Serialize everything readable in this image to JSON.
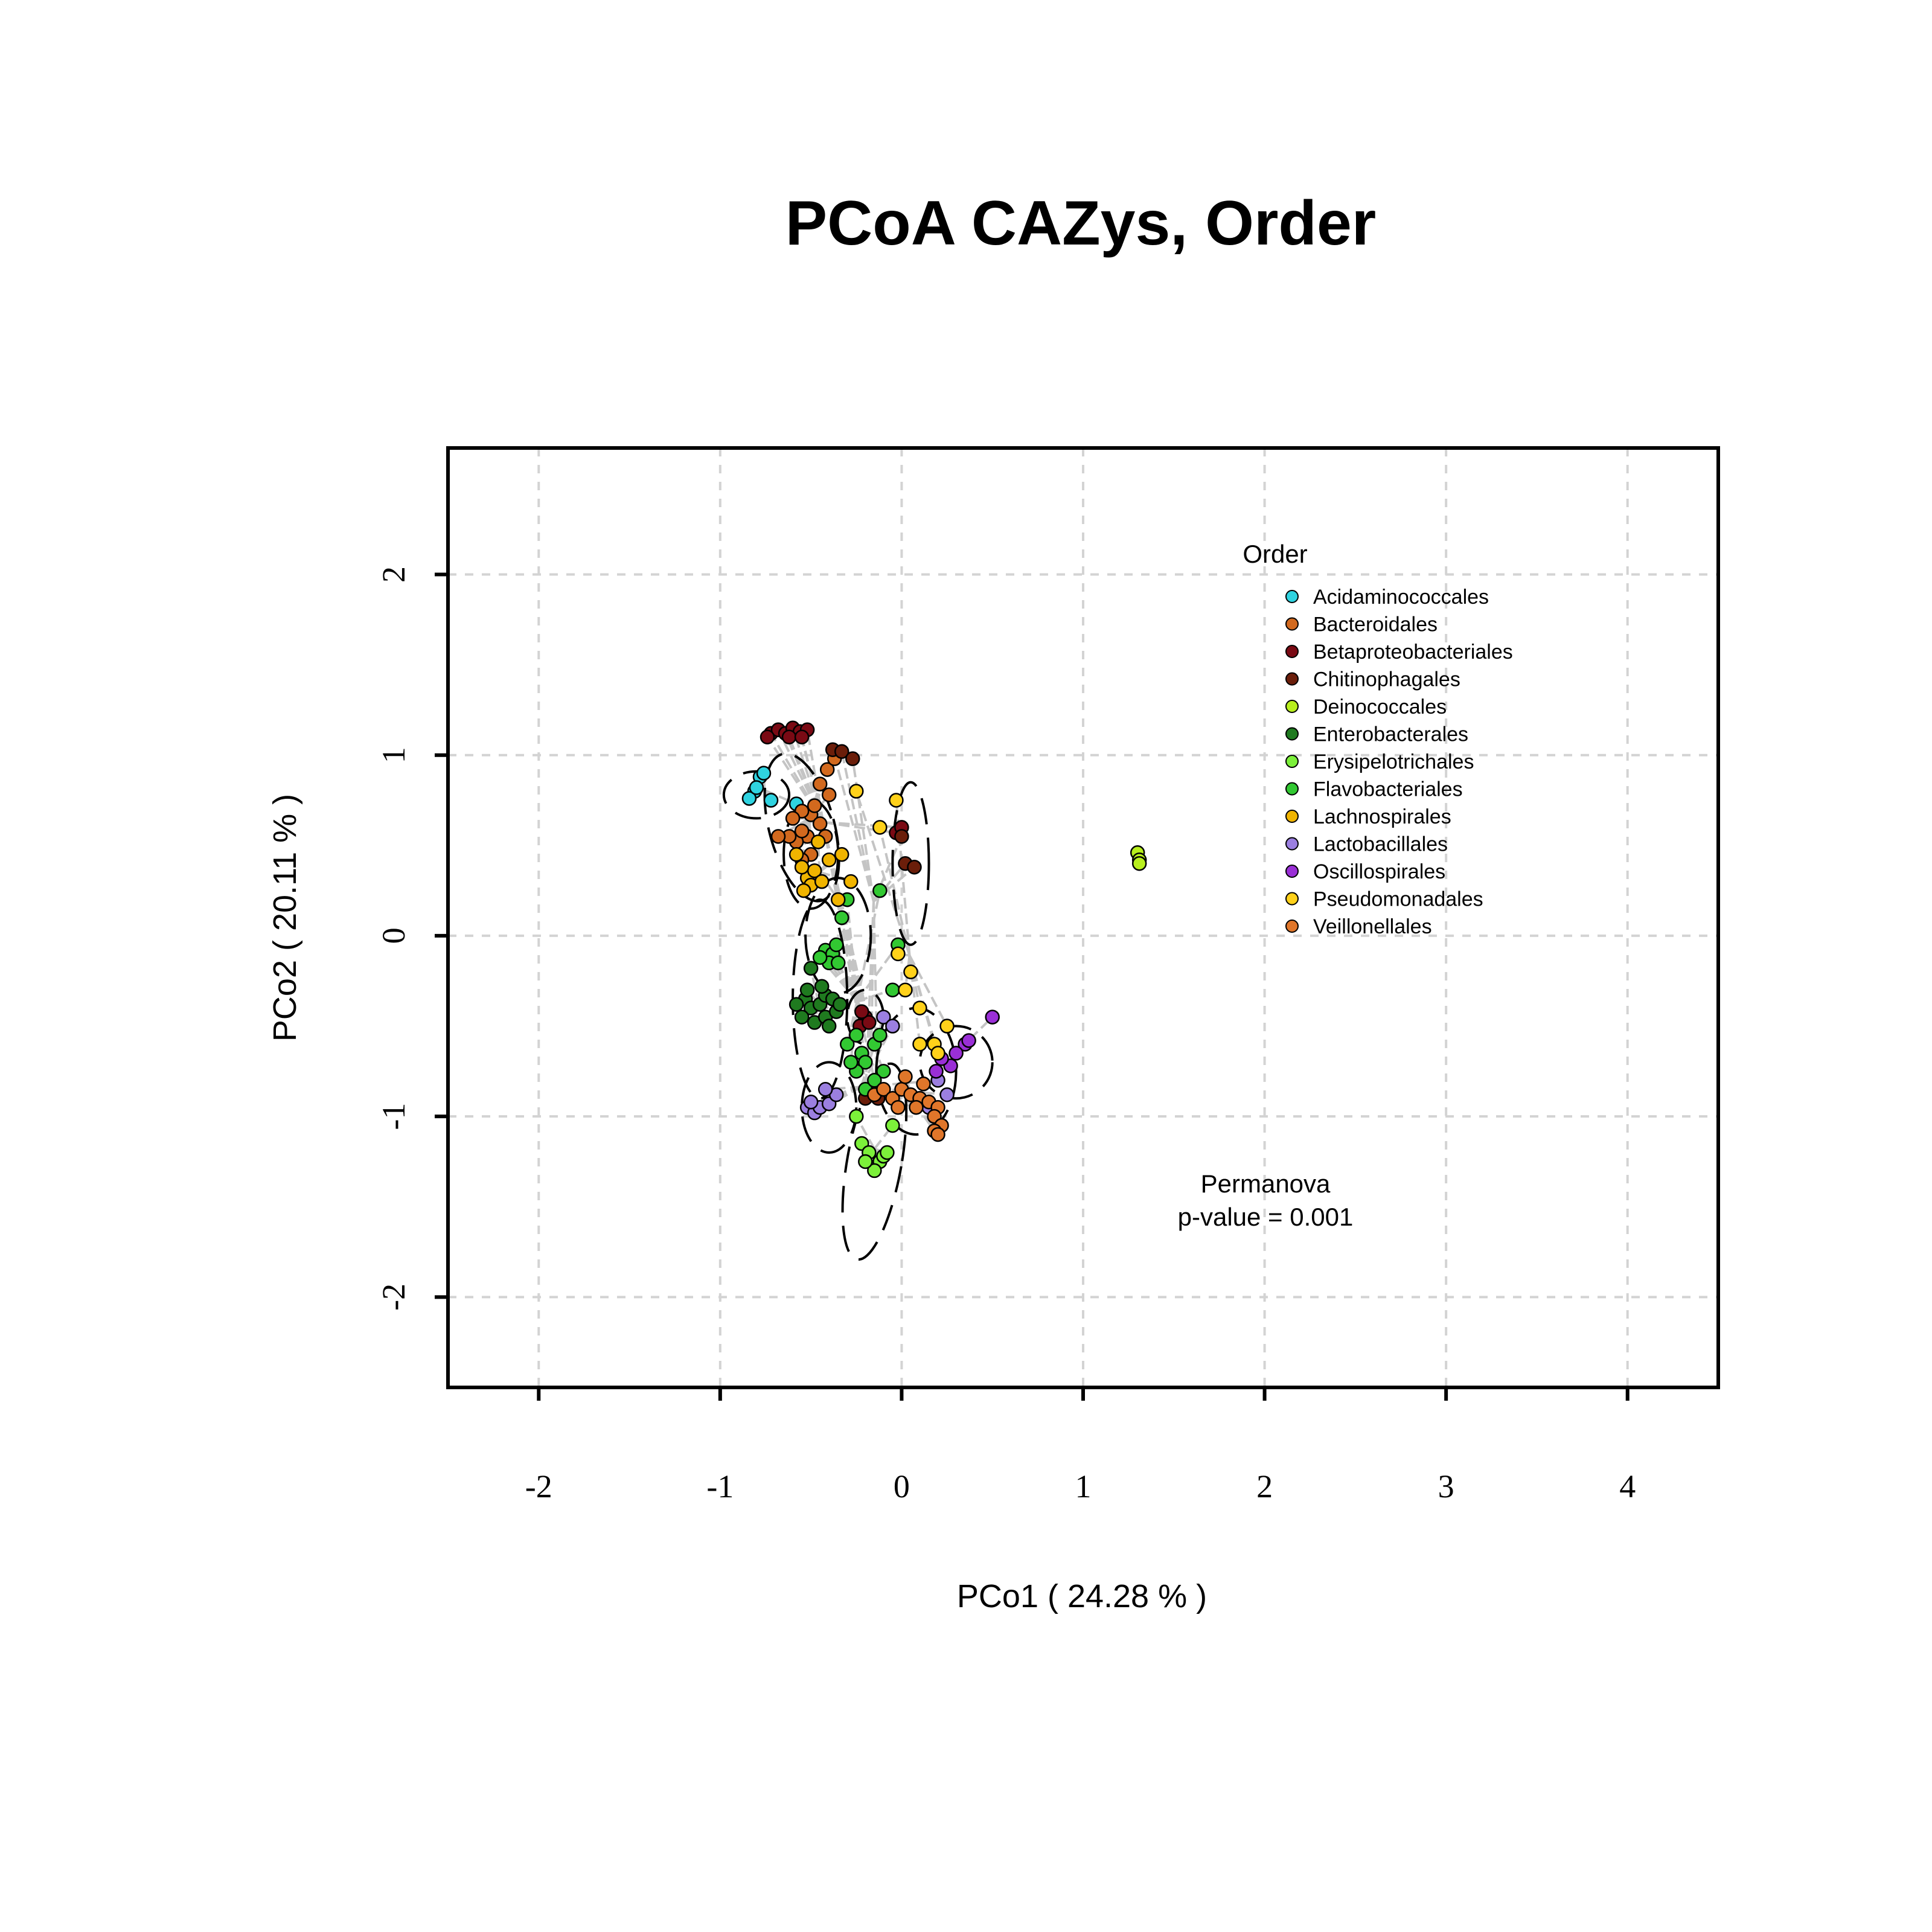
{
  "chart_data": {
    "type": "scatter",
    "title": "PCoA CAZys, Order",
    "xlabel": "PCo1 ( 24.28 % )",
    "ylabel": "PCo2 ( 20.11 % )",
    "xlim": [
      -2.5,
      4.5
    ],
    "ylim": [
      -2.5,
      2.7
    ],
    "x_ticks": [
      -2,
      -1,
      0,
      1,
      2,
      3,
      4
    ],
    "y_ticks": [
      -2,
      -1,
      0,
      1,
      2
    ],
    "x_tick_labels": [
      "-2",
      "-1",
      "0",
      "1",
      "2",
      "3",
      "4"
    ],
    "y_tick_labels": [
      "-2",
      "-1",
      "0",
      "1",
      "2"
    ],
    "grid": true,
    "legend": {
      "title": "Order",
      "position": "top-right"
    },
    "annotation": {
      "line1": "Permanova",
      "line2": "p-value = 0.001"
    },
    "series": [
      {
        "name": "Acidaminococcales",
        "color": "#2fd3e0",
        "ellipse": {
          "cx": -0.8,
          "cy": 0.78,
          "rx": 0.18,
          "ry": 0.13,
          "angle": 0
        },
        "points": [
          [
            -0.78,
            0.88
          ],
          [
            -0.81,
            0.8
          ],
          [
            -0.84,
            0.76
          ],
          [
            -0.72,
            0.75
          ],
          [
            -0.58,
            0.73
          ],
          [
            -0.76,
            0.9
          ],
          [
            -0.8,
            0.82
          ]
        ]
      },
      {
        "name": "Bacteroidales",
        "color": "#d2691e",
        "ellipse": {
          "cx": -0.55,
          "cy": 0.6,
          "rx": 0.18,
          "ry": 0.42,
          "angle": -15
        },
        "points": [
          [
            -0.5,
            0.67
          ],
          [
            -0.55,
            0.69
          ],
          [
            -0.6,
            0.65
          ],
          [
            -0.45,
            0.62
          ],
          [
            -0.52,
            0.55
          ],
          [
            -0.58,
            0.52
          ],
          [
            -0.42,
            0.55
          ],
          [
            -0.5,
            0.45
          ],
          [
            -0.55,
            0.42
          ],
          [
            -0.62,
            0.55
          ],
          [
            -0.48,
            0.72
          ],
          [
            -0.4,
            0.78
          ],
          [
            -0.45,
            0.84
          ],
          [
            -0.41,
            0.92
          ],
          [
            -0.37,
            0.98
          ],
          [
            -0.55,
            0.58
          ],
          [
            -0.68,
            0.55
          ]
        ]
      },
      {
        "name": "Betaproteobacteriales",
        "color": "#7a0a14",
        "ellipse": {
          "cx": -0.2,
          "cy": -0.45,
          "rx": 0.1,
          "ry": 0.15,
          "angle": 0
        },
        "points": [
          [
            -0.72,
            1.12
          ],
          [
            -0.68,
            1.14
          ],
          [
            -0.64,
            1.12
          ],
          [
            -0.6,
            1.15
          ],
          [
            -0.56,
            1.13
          ],
          [
            -0.52,
            1.14
          ],
          [
            -0.74,
            1.1
          ],
          [
            -0.62,
            1.1
          ],
          [
            -0.55,
            1.1
          ],
          [
            -0.03,
            0.57
          ],
          [
            0.0,
            0.6
          ],
          [
            -0.2,
            -0.45
          ],
          [
            -0.23,
            -0.5
          ],
          [
            -0.18,
            -0.48
          ],
          [
            -0.22,
            -0.42
          ]
        ]
      },
      {
        "name": "Chitinophagales",
        "color": "#6b1e0a",
        "ellipse": {
          "cx": 0.05,
          "cy": 0.4,
          "rx": 0.1,
          "ry": 0.45,
          "angle": 0
        },
        "points": [
          [
            -0.38,
            1.03
          ],
          [
            -0.33,
            1.02
          ],
          [
            -0.27,
            0.98
          ],
          [
            0.02,
            0.4
          ],
          [
            0.07,
            0.38
          ],
          [
            0.0,
            0.55
          ],
          [
            -0.17,
            -0.85
          ],
          [
            -0.13,
            -0.9
          ],
          [
            -0.2,
            -0.9
          ]
        ]
      },
      {
        "name": "Deinococcales",
        "color": "#b8ef1e",
        "ellipse": null,
        "points": [
          [
            1.3,
            0.46
          ],
          [
            1.31,
            0.42
          ],
          [
            1.31,
            0.4
          ]
        ]
      },
      {
        "name": "Enterobacterales",
        "color": "#1f7a1f",
        "ellipse": {
          "cx": -0.45,
          "cy": -0.35,
          "rx": 0.15,
          "ry": 0.55,
          "angle": 0
        },
        "points": [
          [
            -0.53,
            -0.35
          ],
          [
            -0.5,
            -0.4
          ],
          [
            -0.45,
            -0.38
          ],
          [
            -0.42,
            -0.33
          ],
          [
            -0.38,
            -0.35
          ],
          [
            -0.55,
            -0.45
          ],
          [
            -0.48,
            -0.48
          ],
          [
            -0.42,
            -0.45
          ],
          [
            -0.36,
            -0.42
          ],
          [
            -0.52,
            -0.3
          ],
          [
            -0.44,
            -0.28
          ],
          [
            -0.5,
            -0.18
          ],
          [
            -0.4,
            -0.5
          ],
          [
            -0.34,
            -0.38
          ],
          [
            -0.58,
            -0.38
          ]
        ]
      },
      {
        "name": "Erysipelotrichales",
        "color": "#7cf03a",
        "ellipse": {
          "cx": -0.15,
          "cy": -1.25,
          "rx": 0.15,
          "ry": 0.55,
          "angle": 10
        },
        "points": [
          [
            -0.22,
            -1.15
          ],
          [
            -0.18,
            -1.2
          ],
          [
            -0.12,
            -1.25
          ],
          [
            -0.1,
            -1.22
          ],
          [
            -0.08,
            -1.2
          ],
          [
            -0.15,
            -1.3
          ],
          [
            -0.2,
            -1.25
          ],
          [
            -0.05,
            -1.05
          ],
          [
            -0.25,
            -1.0
          ]
        ]
      },
      {
        "name": "Flavobacteriales",
        "color": "#32c832",
        "ellipse": {
          "cx": -0.35,
          "cy": 0.0,
          "rx": 0.18,
          "ry": 0.32,
          "angle": 0
        },
        "points": [
          [
            -0.42,
            -0.08
          ],
          [
            -0.38,
            -0.1
          ],
          [
            -0.36,
            -0.05
          ],
          [
            -0.4,
            -0.15
          ],
          [
            -0.35,
            -0.15
          ],
          [
            -0.45,
            -0.12
          ],
          [
            -0.33,
            0.1
          ],
          [
            -0.3,
            -0.6
          ],
          [
            -0.25,
            -0.55
          ],
          [
            -0.22,
            -0.65
          ],
          [
            -0.15,
            -0.6
          ],
          [
            -0.2,
            -0.7
          ],
          [
            -0.25,
            -0.75
          ],
          [
            -0.1,
            -0.75
          ],
          [
            -0.28,
            -0.7
          ],
          [
            -0.05,
            -0.3
          ],
          [
            -0.12,
            -0.55
          ],
          [
            -0.3,
            0.2
          ],
          [
            -0.12,
            0.25
          ],
          [
            -0.02,
            -0.05
          ],
          [
            -0.2,
            -0.85
          ],
          [
            -0.15,
            -0.8
          ]
        ]
      },
      {
        "name": "Lachnospirales",
        "color": "#f0b400",
        "ellipse": {
          "cx": -0.5,
          "cy": 0.45,
          "rx": 0.15,
          "ry": 0.3,
          "angle": 0
        },
        "points": [
          [
            -0.52,
            0.32
          ],
          [
            -0.5,
            0.28
          ],
          [
            -0.54,
            0.25
          ],
          [
            -0.48,
            0.36
          ],
          [
            -0.55,
            0.38
          ],
          [
            -0.44,
            0.3
          ],
          [
            -0.4,
            0.42
          ],
          [
            -0.33,
            0.45
          ],
          [
            -0.28,
            0.3
          ],
          [
            -0.35,
            0.2
          ],
          [
            -0.46,
            0.52
          ],
          [
            -0.58,
            0.45
          ]
        ]
      },
      {
        "name": "Lactobacillales",
        "color": "#9b7fe0",
        "ellipse": {
          "cx": -0.4,
          "cy": -0.95,
          "rx": 0.15,
          "ry": 0.25,
          "angle": 0
        },
        "points": [
          [
            -0.52,
            -0.95
          ],
          [
            -0.48,
            -0.98
          ],
          [
            -0.45,
            -0.95
          ],
          [
            -0.4,
            -0.93
          ],
          [
            -0.36,
            -0.88
          ],
          [
            -0.5,
            -0.92
          ],
          [
            -0.42,
            -0.85
          ],
          [
            -0.1,
            -0.45
          ],
          [
            -0.05,
            -0.5
          ],
          [
            0.2,
            -0.8
          ],
          [
            0.25,
            -0.88
          ],
          [
            0.15,
            -0.95
          ]
        ]
      },
      {
        "name": "Oscillospirales",
        "color": "#9a2fd6",
        "ellipse": {
          "cx": 0.3,
          "cy": -0.7,
          "rx": 0.2,
          "ry": 0.2,
          "angle": 0
        },
        "points": [
          [
            0.5,
            -0.45
          ],
          [
            0.35,
            -0.6
          ],
          [
            0.3,
            -0.65
          ],
          [
            0.27,
            -0.72
          ],
          [
            0.22,
            -0.68
          ],
          [
            0.37,
            -0.58
          ],
          [
            0.19,
            -0.75
          ]
        ]
      },
      {
        "name": "Pseudomonadales",
        "color": "#ffd11a",
        "ellipse": {
          "cx": 0.08,
          "cy": -0.75,
          "rx": 0.22,
          "ry": 0.35,
          "angle": 0
        },
        "points": [
          [
            -0.03,
            0.75
          ],
          [
            0.02,
            -0.3
          ],
          [
            0.05,
            -0.2
          ],
          [
            0.25,
            -0.5
          ],
          [
            0.18,
            -0.6
          ],
          [
            0.1,
            -0.6
          ],
          [
            -0.02,
            -0.1
          ],
          [
            0.1,
            -0.4
          ],
          [
            -0.12,
            0.6
          ],
          [
            -0.25,
            0.8
          ],
          [
            0.2,
            -0.65
          ]
        ]
      },
      {
        "name": "Veillonellales",
        "color": "#e0762a",
        "ellipse": null,
        "points": [
          [
            -0.15,
            -0.88
          ],
          [
            -0.1,
            -0.85
          ],
          [
            -0.05,
            -0.9
          ],
          [
            0.0,
            -0.85
          ],
          [
            0.05,
            -0.88
          ],
          [
            0.1,
            -0.9
          ],
          [
            0.15,
            -0.92
          ],
          [
            0.2,
            -0.95
          ],
          [
            0.18,
            -1.0
          ],
          [
            0.22,
            -1.05
          ],
          [
            0.18,
            -1.08
          ],
          [
            0.2,
            -1.1
          ],
          [
            0.08,
            -0.95
          ],
          [
            -0.02,
            -0.95
          ],
          [
            0.12,
            -0.82
          ],
          [
            0.02,
            -0.78
          ]
        ]
      }
    ]
  }
}
